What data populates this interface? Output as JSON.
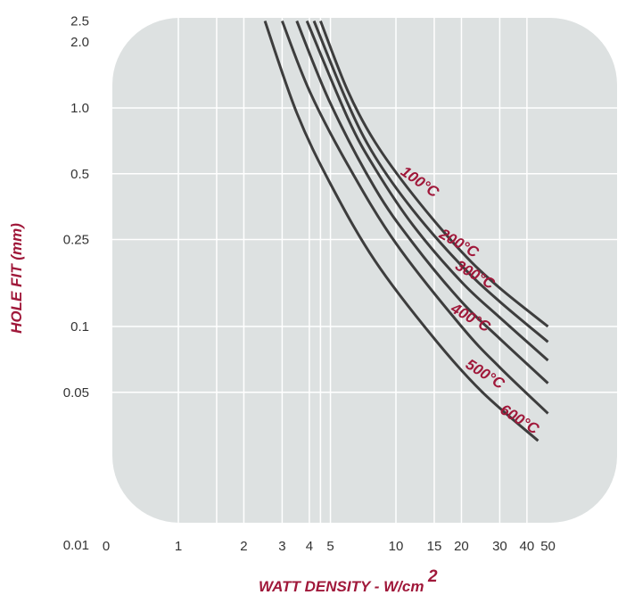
{
  "chart_data": {
    "type": "line",
    "xlabel": "WATT DENSITY - W/cm",
    "xlabel_superscript": "2",
    "ylabel": "HOLE FIT (mm)",
    "x_scale": "log",
    "y_scale": "log",
    "xlim": [
      1,
      50
    ],
    "ylim": [
      0.01,
      2.5
    ],
    "x_ticks": [
      "0",
      "1",
      "2",
      "3",
      "4",
      "5",
      "10",
      "15",
      "20",
      "30",
      "40",
      "50"
    ],
    "x_tick_values": [
      null,
      1,
      2,
      3,
      4,
      5,
      10,
      15,
      20,
      30,
      40,
      50
    ],
    "y_ticks": [
      "2.5",
      "2.0",
      "1.0",
      "0.5",
      "0.25",
      "0.1",
      "0.05",
      "0.01"
    ],
    "y_tick_values": [
      2.5,
      2.0,
      1.0,
      0.5,
      0.25,
      0.1,
      0.05,
      0.01
    ],
    "grid": true,
    "series": [
      {
        "name": "100°C",
        "x": [
          4.5,
          6,
          8,
          12,
          20,
          30,
          50
        ],
        "y": [
          2.5,
          1.2,
          0.7,
          0.4,
          0.22,
          0.15,
          0.1
        ]
      },
      {
        "name": "200°C",
        "x": [
          4.2,
          6,
          8,
          12,
          20,
          30,
          50
        ],
        "y": [
          2.5,
          1.05,
          0.6,
          0.34,
          0.19,
          0.13,
          0.085
        ]
      },
      {
        "name": "300°C",
        "x": [
          3.9,
          6,
          8,
          12,
          20,
          30,
          50
        ],
        "y": [
          2.5,
          0.9,
          0.53,
          0.29,
          0.16,
          0.11,
          0.07
        ]
      },
      {
        "name": "400°C",
        "x": [
          3.5,
          5,
          8,
          12,
          20,
          30,
          50
        ],
        "y": [
          2.5,
          1.05,
          0.43,
          0.24,
          0.13,
          0.088,
          0.055
        ]
      },
      {
        "name": "500°C",
        "x": [
          3.0,
          4,
          6,
          10,
          20,
          30,
          50
        ],
        "y": [
          2.5,
          1.2,
          0.55,
          0.24,
          0.1,
          0.065,
          0.04
        ]
      },
      {
        "name": "600°C",
        "x": [
          2.5,
          3.5,
          5,
          8,
          15,
          25,
          45
        ],
        "y": [
          2.5,
          0.95,
          0.45,
          0.2,
          0.088,
          0.05,
          0.03
        ]
      }
    ],
    "colors": {
      "background": "#dde1e1",
      "grid": "#ffffff",
      "line": "#3d3d3d",
      "label": "#a0183a",
      "text": "#333333"
    }
  }
}
